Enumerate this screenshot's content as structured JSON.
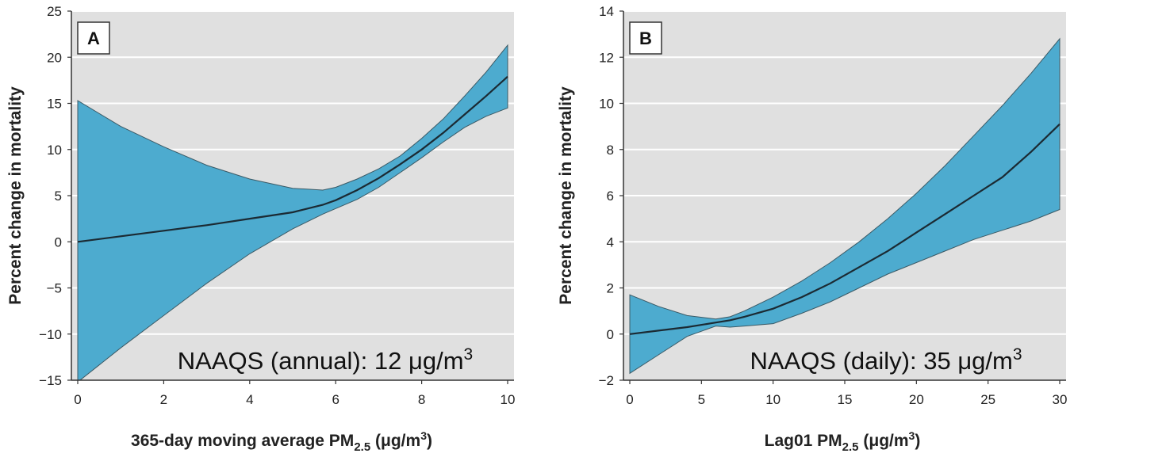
{
  "chart_data": [
    {
      "type": "line",
      "panel": "A",
      "xlabel": "365-day moving average PM",
      "xlabel_sub": "2.5",
      "xlabel_unit": " (μg/m",
      "xlabel_sup": "3",
      "xlabel_close": ")",
      "ylabel": "Percent change in mortality",
      "xlim": [
        0,
        10
      ],
      "ylim": [
        -15,
        25
      ],
      "xticks": [
        0,
        2,
        4,
        6,
        8,
        10
      ],
      "yticks": [
        -15,
        -10,
        -5,
        0,
        5,
        10,
        15,
        20,
        25
      ],
      "ytick_labels": [
        "−15",
        "−10",
        "−5",
        "0",
        "5",
        "10",
        "15",
        "20",
        "25"
      ],
      "grid": true,
      "annotation_text": "NAAQS (annual): 12 μg/m",
      "annotation_sup": "3",
      "colors": {
        "band": "#4dabcf",
        "line": "#1b2a33",
        "plot_bg": "#e0e0e0",
        "grid": "#ffffff"
      },
      "x": [
        0,
        1,
        2,
        3,
        4,
        5,
        5.7,
        6,
        6.5,
        7,
        7.5,
        8,
        8.5,
        9,
        9.5,
        10
      ],
      "estimate": [
        0,
        0.6,
        1.2,
        1.8,
        2.5,
        3.2,
        4.0,
        4.5,
        5.6,
        6.9,
        8.4,
        10.0,
        11.8,
        13.8,
        15.8,
        17.9
      ],
      "upper": [
        15.3,
        12.5,
        10.3,
        8.3,
        6.8,
        5.8,
        5.6,
        5.9,
        6.8,
        7.9,
        9.3,
        11.2,
        13.3,
        15.8,
        18.4,
        21.3
      ],
      "lower": [
        -15.2,
        -11.5,
        -8.0,
        -4.5,
        -1.3,
        1.4,
        3.0,
        3.6,
        4.6,
        5.9,
        7.5,
        9.1,
        10.8,
        12.4,
        13.6,
        14.5
      ]
    },
    {
      "type": "line",
      "panel": "B",
      "xlabel": "Lag01 PM",
      "xlabel_sub": "2.5",
      "xlabel_unit": " (μg/m",
      "xlabel_sup": "3",
      "xlabel_close": ")",
      "ylabel": "Percent change in mortality",
      "xlim": [
        0,
        30
      ],
      "ylim": [
        -2,
        14
      ],
      "xticks": [
        0,
        5,
        10,
        15,
        20,
        25,
        30
      ],
      "yticks": [
        -2,
        0,
        2,
        4,
        6,
        8,
        10,
        12,
        14
      ],
      "ytick_labels": [
        "−2",
        "0",
        "2",
        "4",
        "6",
        "8",
        "10",
        "12",
        "14"
      ],
      "grid": true,
      "annotation_text": "NAAQS (daily): 35 μg/m",
      "annotation_sup": "3",
      "colors": {
        "band": "#4dabcf",
        "line": "#1b2a33",
        "plot_bg": "#e0e0e0",
        "grid": "#ffffff"
      },
      "x": [
        0,
        2,
        4,
        6,
        7,
        8,
        10,
        12,
        14,
        16,
        18,
        20,
        22,
        24,
        26,
        28,
        30
      ],
      "estimate": [
        0,
        0.15,
        0.3,
        0.5,
        0.6,
        0.75,
        1.1,
        1.6,
        2.2,
        2.9,
        3.6,
        4.4,
        5.2,
        6.0,
        6.8,
        7.9,
        9.1
      ],
      "upper": [
        1.7,
        1.2,
        0.8,
        0.65,
        0.75,
        1.0,
        1.6,
        2.3,
        3.1,
        4.0,
        5.0,
        6.1,
        7.3,
        8.6,
        9.9,
        11.3,
        12.8
      ],
      "lower": [
        -1.7,
        -0.9,
        -0.1,
        0.35,
        0.3,
        0.35,
        0.45,
        0.9,
        1.4,
        2.0,
        2.6,
        3.1,
        3.6,
        4.1,
        4.5,
        4.9,
        5.4
      ]
    }
  ]
}
